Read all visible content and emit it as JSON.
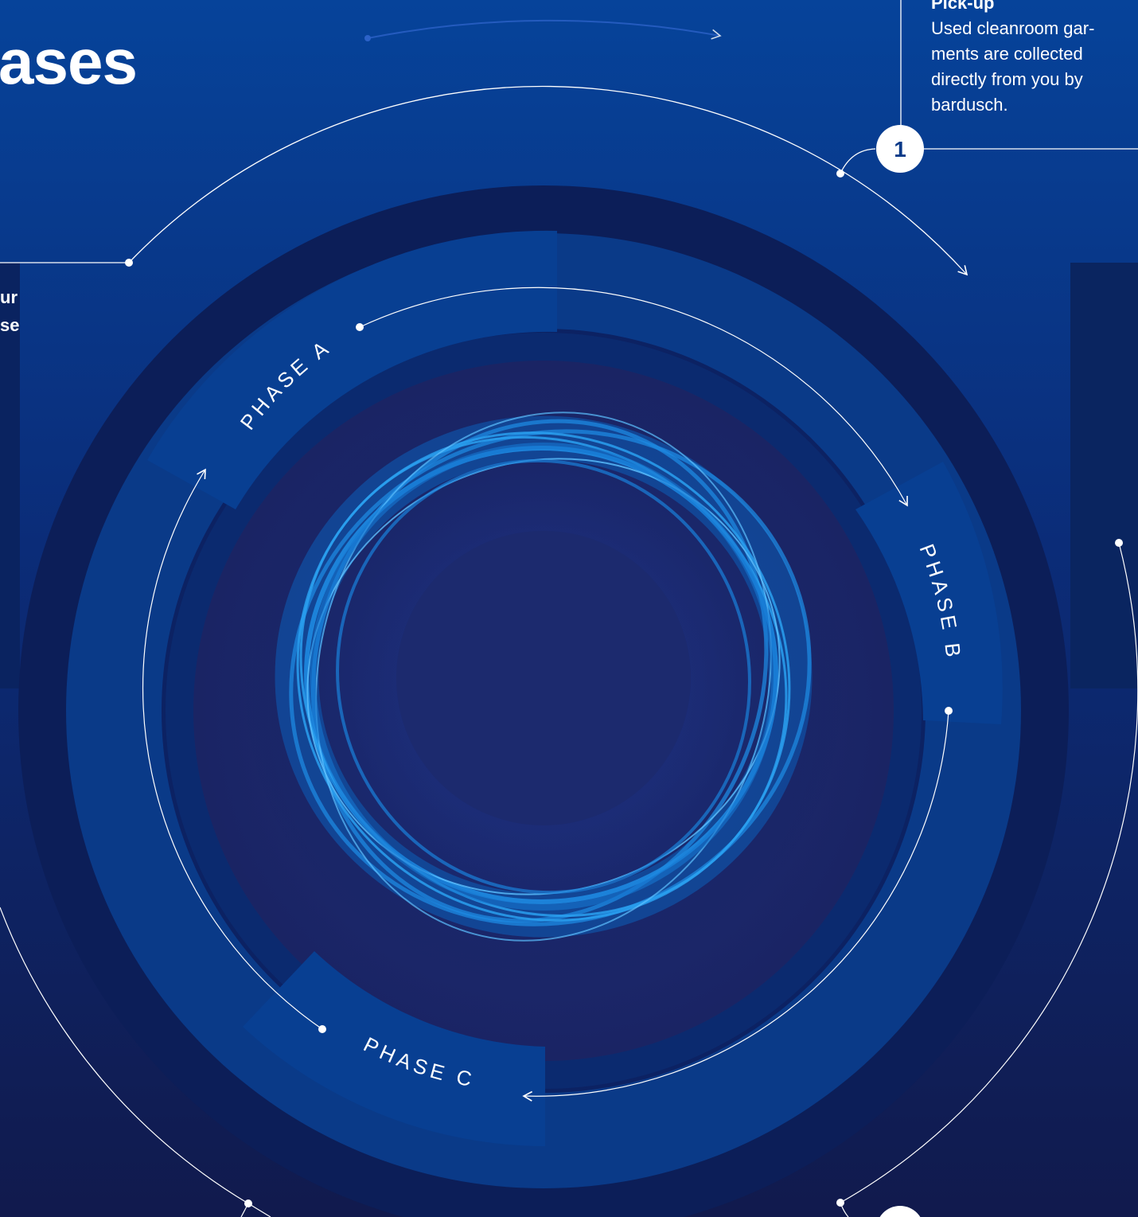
{
  "colors": {
    "background_top": "#06439a",
    "background_bottom": "#101a4e",
    "ring_band": "#073f8e",
    "inner_disc": "#1c2a6e",
    "fiber": "#1e88e0",
    "line": "#ffffff"
  },
  "header": {
    "title_fragment": "ases"
  },
  "side_text": {
    "line1": "ur",
    "line2": "se"
  },
  "steps": [
    {
      "number": "1",
      "title": "Pick-up",
      "description_lines": [
        "Used cleanroom gar-",
        "ments are collected",
        "directly from you by",
        "bardusch."
      ]
    }
  ],
  "phases": {
    "a": "PHASE A",
    "b": "PHASE B",
    "c": "PHASE C"
  },
  "center_image": "blue-fiber-ring"
}
